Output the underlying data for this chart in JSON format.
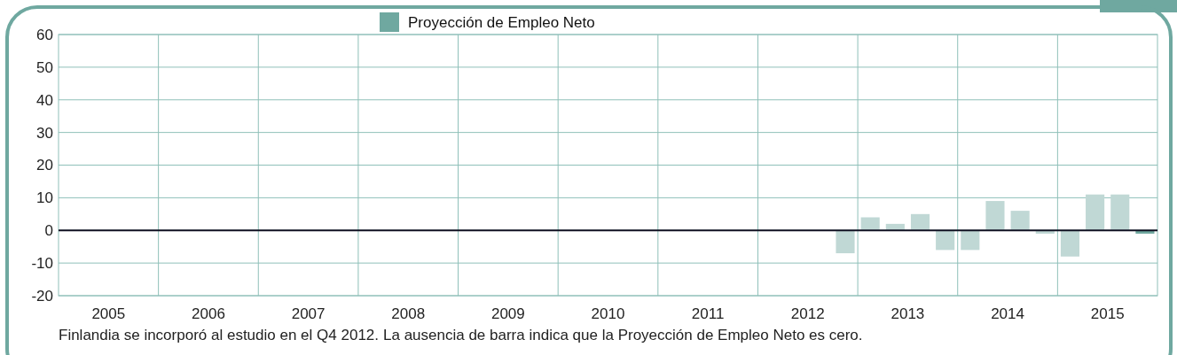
{
  "chart_data": {
    "type": "bar",
    "x": [
      2012.875,
      2013.125,
      2013.375,
      2013.625,
      2013.875,
      2014.125,
      2014.375,
      2014.625,
      2014.875,
      2015.125,
      2015.375,
      2015.625,
      2015.875
    ],
    "series": [
      {
        "name": "Proyección de Empleo Neto",
        "color": "#6fa8a0",
        "values": [
          -7,
          4,
          2,
          5,
          -6,
          -6,
          9,
          6,
          -1,
          -8,
          11,
          11,
          -1
        ],
        "colors": [
          "#c0d8d5",
          "#c0d8d5",
          "#c0d8d5",
          "#c0d8d5",
          "#c0d8d5",
          "#c0d8d5",
          "#c0d8d5",
          "#c0d8d5",
          "#c0d8d5",
          "#c0d8d5",
          "#c0d8d5",
          "#c0d8d5",
          "#6fa8a0"
        ]
      }
    ],
    "xlim": [
      2005,
      2016
    ],
    "xticks": [
      {
        "value": 2005.5,
        "label": "2005"
      },
      {
        "value": 2006,
        "label": null
      },
      {
        "value": 2006.5,
        "label": "2006"
      },
      {
        "value": 2007,
        "label": null
      },
      {
        "value": 2007.5,
        "label": "2007"
      },
      {
        "value": 2008,
        "label": null
      },
      {
        "value": 2008.5,
        "label": "2008"
      },
      {
        "value": 2009,
        "label": null
      },
      {
        "value": 2009.5,
        "label": "2009"
      },
      {
        "value": 2010,
        "label": null
      },
      {
        "value": 2010.5,
        "label": "2010"
      },
      {
        "value": 2011,
        "label": null
      },
      {
        "value": 2011.5,
        "label": "2011"
      },
      {
        "value": 2012,
        "label": null
      },
      {
        "value": 2012.5,
        "label": "2012"
      },
      {
        "value": 2013,
        "label": null
      },
      {
        "value": 2013.5,
        "label": "2013"
      },
      {
        "value": 2014,
        "label": null
      },
      {
        "value": 2014.5,
        "label": "2014"
      },
      {
        "value": 2015,
        "label": null
      },
      {
        "value": 2015.5,
        "label": "2015"
      }
    ],
    "ylim": [
      -20,
      60
    ],
    "yticks": [
      -20,
      -10,
      0,
      10,
      20,
      30,
      40,
      50,
      60
    ],
    "grid": true,
    "legend": "top",
    "annotations": [
      "Finlandia se incorporó al estudio en el Q4 2012.",
      "La ausencia de barra indica que la Proyección de Empleo Neto es cero."
    ]
  }
}
